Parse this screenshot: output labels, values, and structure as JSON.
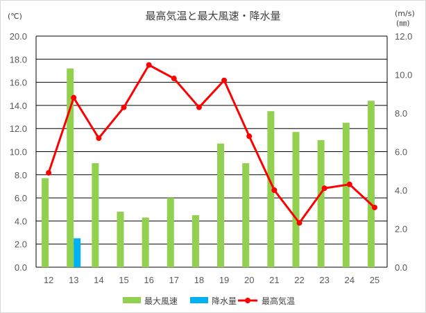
{
  "chart_data": {
    "type": "bar",
    "title": "最高気温と最大風速・降水量",
    "y_left_unit": "(℃)",
    "y_right_unit_line1": "(m/s)",
    "y_right_unit_line2": "(㎜)",
    "categories": [
      "12",
      "13",
      "14",
      "15",
      "16",
      "17",
      "18",
      "19",
      "20",
      "21",
      "22",
      "23",
      "24",
      "25"
    ],
    "ylim_left": [
      0,
      20
    ],
    "ylim_right": [
      0,
      12
    ],
    "left_ticks": [
      "0.0",
      "2.0",
      "4.0",
      "6.0",
      "8.0",
      "10.0",
      "12.0",
      "14.0",
      "16.0",
      "18.0",
      "20.0"
    ],
    "right_ticks": [
      "0.0",
      "2.0",
      "4.0",
      "6.0",
      "8.0",
      "10.0",
      "12.0"
    ],
    "grid": true,
    "legend_position": "bottom",
    "series": [
      {
        "name": "最大風速",
        "kind": "bar",
        "axis": "left",
        "color": "#92d050",
        "values": [
          7.7,
          17.2,
          9.0,
          4.8,
          4.3,
          6.0,
          4.5,
          10.7,
          9.0,
          13.5,
          11.7,
          11.0,
          12.5,
          14.4
        ]
      },
      {
        "name": "降水量",
        "kind": "bar",
        "axis": "left",
        "color": "#00b0f0",
        "values": [
          0,
          2.5,
          0,
          0,
          0,
          0,
          0,
          0,
          0,
          0,
          0,
          0,
          0,
          0
        ]
      },
      {
        "name": "最高気温",
        "kind": "line",
        "axis": "right",
        "color": "#ff0000",
        "values": [
          4.9,
          8.8,
          6.7,
          8.3,
          10.5,
          9.8,
          8.3,
          9.7,
          6.8,
          4.0,
          2.3,
          4.1,
          4.3,
          3.1
        ]
      }
    ]
  }
}
